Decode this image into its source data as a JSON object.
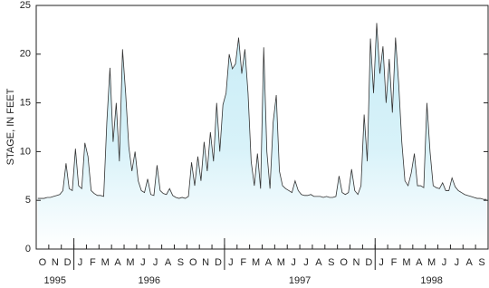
{
  "chart_data": {
    "type": "area",
    "y_label": "STAGE, IN FEET",
    "ylim": [
      0,
      25
    ],
    "yticks": [
      0,
      5,
      10,
      15,
      20,
      25
    ],
    "years": [
      "1995",
      "1996",
      "1997",
      "1998"
    ],
    "color": "#333333",
    "fill": "#cfeef7",
    "categories": [
      null,
      null,
      "O",
      null,
      null,
      null,
      "N",
      null,
      null,
      null,
      "D",
      null,
      null,
      null,
      "J",
      null,
      null,
      null,
      "F",
      null,
      null,
      null,
      "M",
      null,
      null,
      null,
      "A",
      null,
      null,
      null,
      "M",
      null,
      null,
      null,
      "J",
      null,
      null,
      null,
      "J",
      null,
      null,
      null,
      "A",
      null,
      null,
      null,
      "S",
      null,
      null,
      null,
      "O",
      null,
      null,
      null,
      "N",
      null,
      null,
      null,
      "D",
      null,
      null,
      null,
      "J",
      null,
      null,
      null,
      "F",
      null,
      null,
      null,
      "M",
      null,
      null,
      null,
      "A",
      null,
      null,
      null,
      "M",
      null,
      null,
      null,
      "J",
      null,
      null,
      null,
      "J",
      null,
      null,
      null,
      "A",
      null,
      null,
      null,
      "S",
      null,
      null,
      null,
      "O",
      null,
      null,
      null,
      "N",
      null,
      null,
      null,
      "D",
      null,
      null,
      null,
      "J",
      null,
      null,
      null,
      "F",
      null,
      null,
      null,
      "M",
      null,
      null,
      null,
      "A",
      null,
      null,
      null,
      "M",
      null,
      null,
      null,
      "J",
      null,
      null,
      null,
      "J",
      null,
      null,
      null,
      "A",
      null,
      null,
      null,
      "S",
      null
    ],
    "values": [
      5.2,
      5.2,
      5.2,
      5.3,
      5.3,
      5.4,
      5.5,
      5.6,
      6.0,
      8.8,
      6.2,
      6.0,
      10.3,
      6.5,
      6.2,
      10.9,
      9.5,
      6.0,
      5.7,
      5.5,
      5.5,
      5.4,
      13.0,
      18.6,
      11.0,
      15.0,
      9.0,
      20.5,
      16.0,
      10.5,
      8.0,
      10.0,
      7.0,
      6.0,
      5.8,
      7.2,
      5.6,
      5.5,
      8.6,
      6.0,
      5.7,
      5.6,
      6.2,
      5.5,
      5.3,
      5.2,
      5.3,
      5.2,
      5.4,
      8.9,
      6.5,
      9.5,
      7.0,
      11.0,
      8.0,
      12.0,
      9.0,
      15.0,
      10.0,
      14.8,
      16.0,
      20.0,
      18.5,
      19.0,
      21.7,
      18.0,
      20.5,
      16.0,
      9.0,
      6.5,
      9.8,
      6.2,
      20.7,
      10.0,
      6.2,
      13.0,
      15.8,
      8.0,
      6.5,
      6.2,
      6.0,
      5.8,
      7.0,
      6.0,
      5.6,
      5.5,
      5.5,
      5.6,
      5.4,
      5.4,
      5.4,
      5.3,
      5.4,
      5.3,
      5.3,
      5.4,
      7.5,
      5.8,
      5.6,
      5.8,
      8.2,
      6.0,
      5.6,
      6.5,
      13.8,
      9.0,
      21.6,
      16.0,
      23.2,
      18.0,
      20.8,
      15.0,
      19.5,
      14.0,
      21.7,
      17.0,
      11.0,
      7.0,
      6.5,
      7.8,
      9.8,
      6.5,
      6.5,
      6.3,
      15.0,
      10.0,
      6.5,
      6.3,
      6.2,
      6.8,
      6.0,
      6.0,
      7.3,
      6.4,
      6.0,
      5.8,
      5.6,
      5.5,
      5.4,
      5.3,
      5.2,
      5.2,
      5.1,
      5.1
    ]
  }
}
